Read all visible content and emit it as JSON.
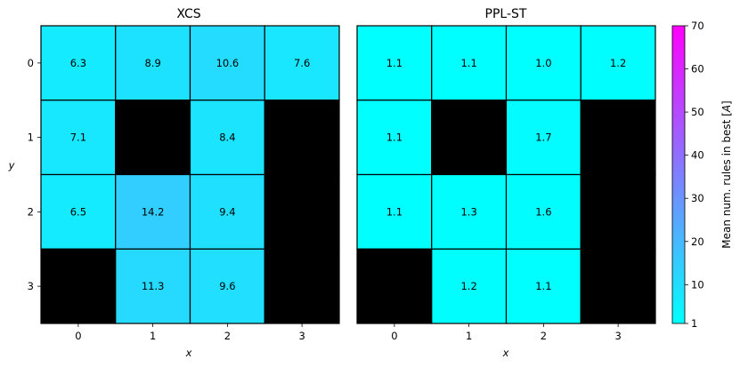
{
  "chart_data": [
    {
      "type": "heatmap",
      "title": "XCS",
      "xlabel": "x",
      "ylabel": "y",
      "x_categories": [
        "0",
        "1",
        "2",
        "3"
      ],
      "y_categories": [
        "0",
        "1",
        "2",
        "3"
      ],
      "values": [
        [
          6.3,
          8.9,
          10.6,
          7.6
        ],
        [
          7.1,
          null,
          8.4,
          null
        ],
        [
          6.5,
          14.2,
          9.4,
          null
        ],
        [
          null,
          11.3,
          9.6,
          null
        ]
      ],
      "missing_color": "#000000"
    },
    {
      "type": "heatmap",
      "title": "PPL-ST",
      "xlabel": "x",
      "x_categories": [
        "0",
        "1",
        "2",
        "3"
      ],
      "values": [
        [
          1.1,
          1.1,
          1.0,
          1.2
        ],
        [
          1.1,
          null,
          1.7,
          null
        ],
        [
          1.1,
          1.3,
          1.6,
          null
        ],
        [
          null,
          1.2,
          1.1,
          null
        ]
      ],
      "missing_color": "#000000"
    }
  ],
  "colorbar": {
    "label": "Mean num. rules in best [A]",
    "colormap": "cool",
    "colormap_start": "#00ffff",
    "colormap_end": "#ff00ff",
    "range": [
      1,
      70
    ],
    "ticks": [
      "1",
      "10",
      "20",
      "30",
      "40",
      "50",
      "60",
      "70"
    ]
  }
}
